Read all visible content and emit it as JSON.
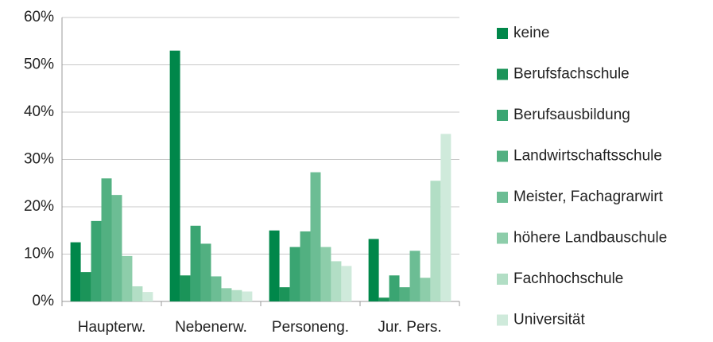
{
  "chart_data": {
    "type": "bar",
    "categories": [
      "Haupterw.",
      "Nebenerw.",
      "Personeng.",
      "Jur. Pers."
    ],
    "series": [
      {
        "name": "keine",
        "color": "#00874a",
        "values": [
          12.5,
          53,
          15,
          13.2
        ]
      },
      {
        "name": "Berufsfachschule",
        "color": "#1b9459",
        "values": [
          6.2,
          5.5,
          3,
          0.8
        ]
      },
      {
        "name": "Berufsausbildung",
        "color": "#3aa572",
        "values": [
          17,
          16,
          11.5,
          5.5
        ]
      },
      {
        "name": "Landwirtschaftsschule",
        "color": "#52b081",
        "values": [
          26,
          12.2,
          14.8,
          3
        ]
      },
      {
        "name": "Meister, Fachagrarwirt",
        "color": "#6cbd94",
        "values": [
          22.5,
          5.3,
          27.3,
          10.7
        ]
      },
      {
        "name": "höhere Landbauschule",
        "color": "#8dcdaa",
        "values": [
          9.6,
          2.8,
          11.5,
          5
        ]
      },
      {
        "name": "Fachhochschule",
        "color": "#b2dec5",
        "values": [
          3.2,
          2.4,
          8.5,
          25.5
        ]
      },
      {
        "name": "Universität",
        "color": "#cfeadb",
        "values": [
          2,
          2.1,
          7.5,
          35.4
        ]
      }
    ],
    "ylim": [
      0,
      60
    ],
    "yticks": [
      {
        "value": 0,
        "label": "0%"
      },
      {
        "value": 10,
        "label": "10%"
      },
      {
        "value": 20,
        "label": "20%"
      },
      {
        "value": 30,
        "label": "30%"
      },
      {
        "value": 40,
        "label": "40%"
      },
      {
        "value": 50,
        "label": "50%"
      },
      {
        "value": 60,
        "label": "60%"
      }
    ],
    "grid": true,
    "legend": "right"
  }
}
